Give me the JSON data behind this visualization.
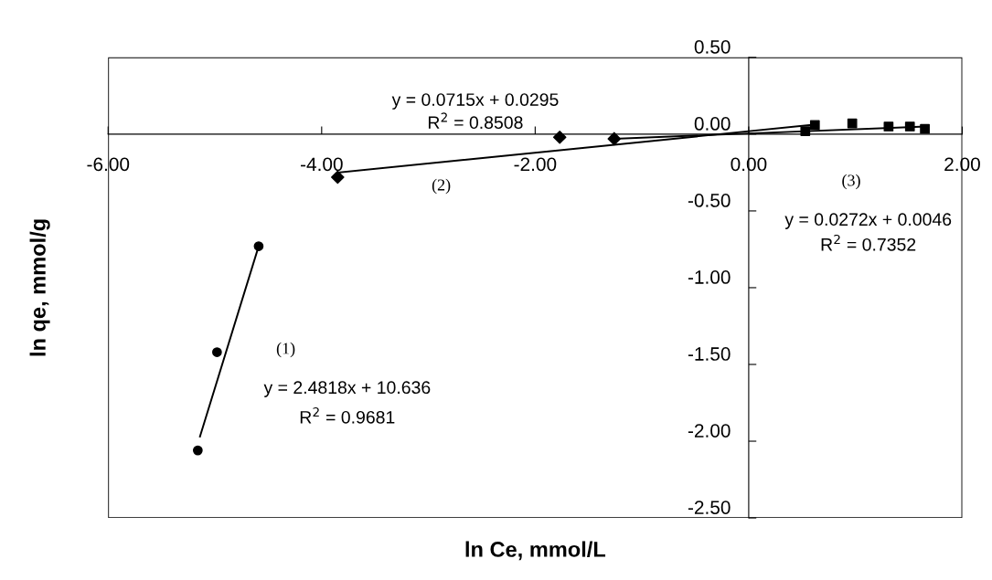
{
  "chart_data": {
    "type": "scatter",
    "xlabel": "ln Ce, mmol/L",
    "ylabel": "ln qe, mmol/g",
    "xlim": [
      -6,
      2
    ],
    "ylim": [
      -2.5,
      0.5
    ],
    "xticks": [
      {
        "value": -6,
        "label": "-6.00"
      },
      {
        "value": -4,
        "label": "-4.00"
      },
      {
        "value": -2,
        "label": "-2.00"
      },
      {
        "value": 0,
        "label": "0.00"
      },
      {
        "value": 2,
        "label": "2.00"
      }
    ],
    "yticks": [
      {
        "value": -2.5,
        "label": "-2.50"
      },
      {
        "value": -2,
        "label": "-2.00"
      },
      {
        "value": -1.5,
        "label": "-1.50"
      },
      {
        "value": -1,
        "label": "-1.00"
      },
      {
        "value": -0.5,
        "label": "-0.50"
      },
      {
        "value": 0,
        "label": "0.00"
      },
      {
        "value": 0.5,
        "label": "0.50"
      }
    ],
    "grid": false,
    "legend": false,
    "series": [
      {
        "marker": "circle",
        "color": "#000000",
        "x": [
          -5.16,
          -4.98,
          -4.59
        ],
        "values": [
          -2.06,
          -1.42,
          -0.73
        ]
      },
      {
        "marker": "diamond",
        "color": "#000000",
        "x": [
          -3.85,
          -1.77,
          -1.26
        ],
        "values": [
          -0.28,
          -0.02,
          -0.03
        ]
      },
      {
        "marker": "square",
        "color": "#000000",
        "x": [
          0.53,
          0.62,
          0.97,
          1.31,
          1.51,
          1.65
        ],
        "values": [
          0.02,
          0.06,
          0.07,
          0.05,
          0.05,
          0.035
        ]
      },
      {
        "type": "line",
        "marker": "none",
        "line_style": "solid",
        "color": "#000000",
        "x": [
          -5.14,
          -4.59
        ],
        "values": [
          -1.97,
          -0.73
        ]
      },
      {
        "type": "line",
        "marker": "none",
        "line_style": "solid",
        "color": "#000000",
        "x": [
          -3.85,
          0.58
        ],
        "values": [
          -0.25,
          0.06
        ]
      },
      {
        "type": "line",
        "marker": "none",
        "line_style": "solid",
        "color": "#000000",
        "x": [
          -1.26,
          1.65
        ],
        "values": [
          -0.03,
          0.05
        ]
      }
    ],
    "annotations": [
      "(1)",
      "y = 2.4818x + 10.636",
      "R$^{2}$ = 0.9681",
      "(2)",
      "y = 0.0715x + 0.0295",
      "R$^{2}$ = 0.8508",
      "(3)",
      "y = 0.0272x + 0.0046",
      "R$^{2}$ = 0.7352"
    ]
  }
}
